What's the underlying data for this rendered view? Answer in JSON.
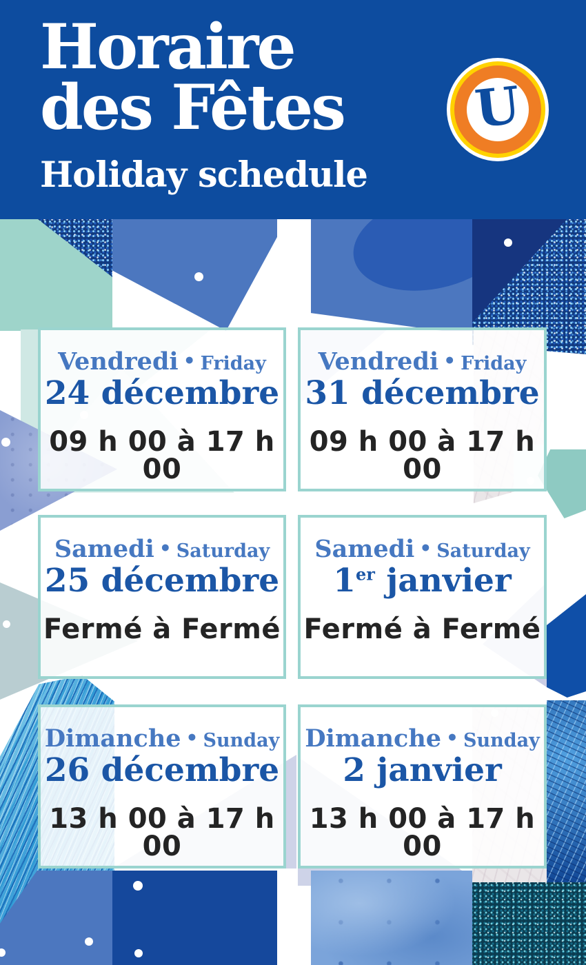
{
  "header": {
    "title_line1": "Horaire",
    "title_line2": "des Fêtes",
    "subtitle": "Holiday schedule",
    "logo_letter": "U"
  },
  "cards": [
    {
      "day_fr": "Vendredi",
      "sep": "•",
      "day_en": "Friday",
      "date_pre": "24 décembre",
      "date_sup": "",
      "date_post": "",
      "hours": "09 h 00 à 17 h 00"
    },
    {
      "day_fr": "Vendredi",
      "sep": "•",
      "day_en": "Friday",
      "date_pre": "31 décembre",
      "date_sup": "",
      "date_post": "",
      "hours": "09 h 00 à 17 h 00"
    },
    {
      "day_fr": "Samedi",
      "sep": "•",
      "day_en": "Saturday",
      "date_pre": "25 décembre",
      "date_sup": "",
      "date_post": "",
      "hours": "Fermé à Fermé"
    },
    {
      "day_fr": "Samedi",
      "sep": "•",
      "day_en": "Saturday",
      "date_pre": "1",
      "date_sup": "er",
      "date_post": " janvier",
      "hours": "Fermé à Fermé"
    },
    {
      "day_fr": "Dimanche",
      "sep": "•",
      "day_en": "Sunday",
      "date_pre": "26 décembre",
      "date_sup": "",
      "date_post": "",
      "hours": "13 h 00 à 17 h 00"
    },
    {
      "day_fr": "Dimanche",
      "sep": "•",
      "day_en": "Sunday",
      "date_pre": "2 janvier",
      "date_sup": "",
      "date_post": "",
      "hours": "13 h 00 à 17 h 00"
    }
  ],
  "colors": {
    "header_bg": "#0d4c9f",
    "day_blue": "#4678c1",
    "date_blue": "#1b56a6",
    "hours_text": "#242424",
    "card_border": "#9ad4cf",
    "logo_orange": "#ef7d24",
    "logo_yellow": "#ffd200",
    "logo_letter_blue": "#0d4c9f"
  }
}
